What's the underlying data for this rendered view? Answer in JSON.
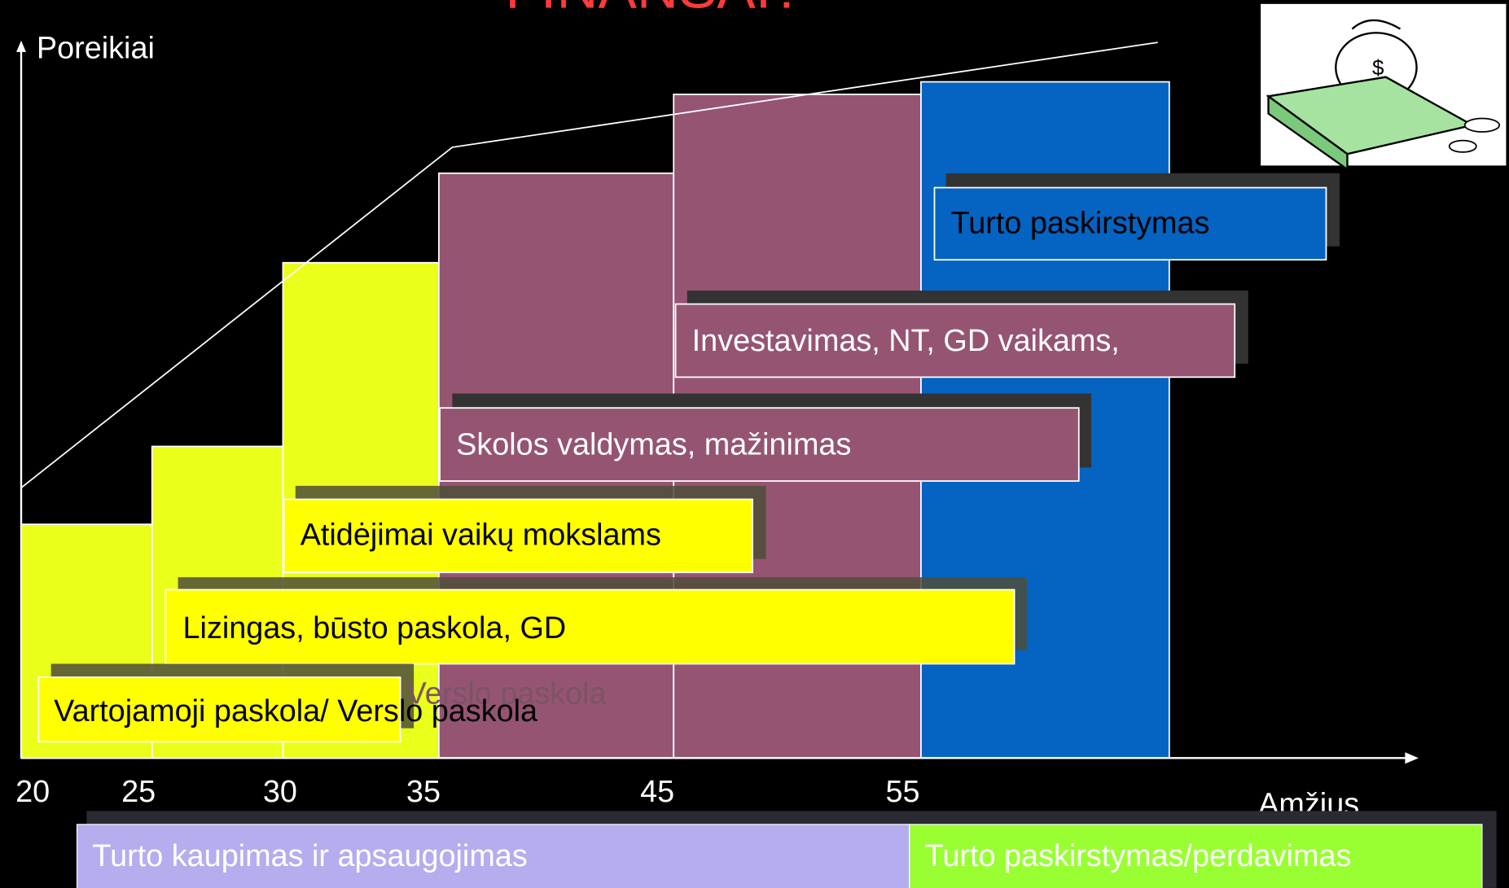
{
  "title": "FINANSAI?",
  "axis": {
    "y_label": "Poreikiai",
    "x_label": "Amžius",
    "ages": [
      "20",
      "25",
      "30",
      "35",
      "45",
      "55"
    ]
  },
  "boxes": [
    {
      "label": "Turto paskirstymas"
    },
    {
      "label": "Investavimas, NT, GD vaikams,"
    },
    {
      "label": "Skolos valdymas, mažinimas"
    },
    {
      "label": "Atidėjimai vaikų mokslams"
    },
    {
      "label": "Lizingas, būsto paskola, GD"
    },
    {
      "label": "Vartojamoji paskola/ Verslo paskola",
      "ghost_text": "Verslo paskola"
    }
  ],
  "phases": [
    {
      "label": "Turto kaupimas ir apsaugojimas"
    },
    {
      "label": "Turto paskirstymas/perdavimas"
    }
  ]
}
